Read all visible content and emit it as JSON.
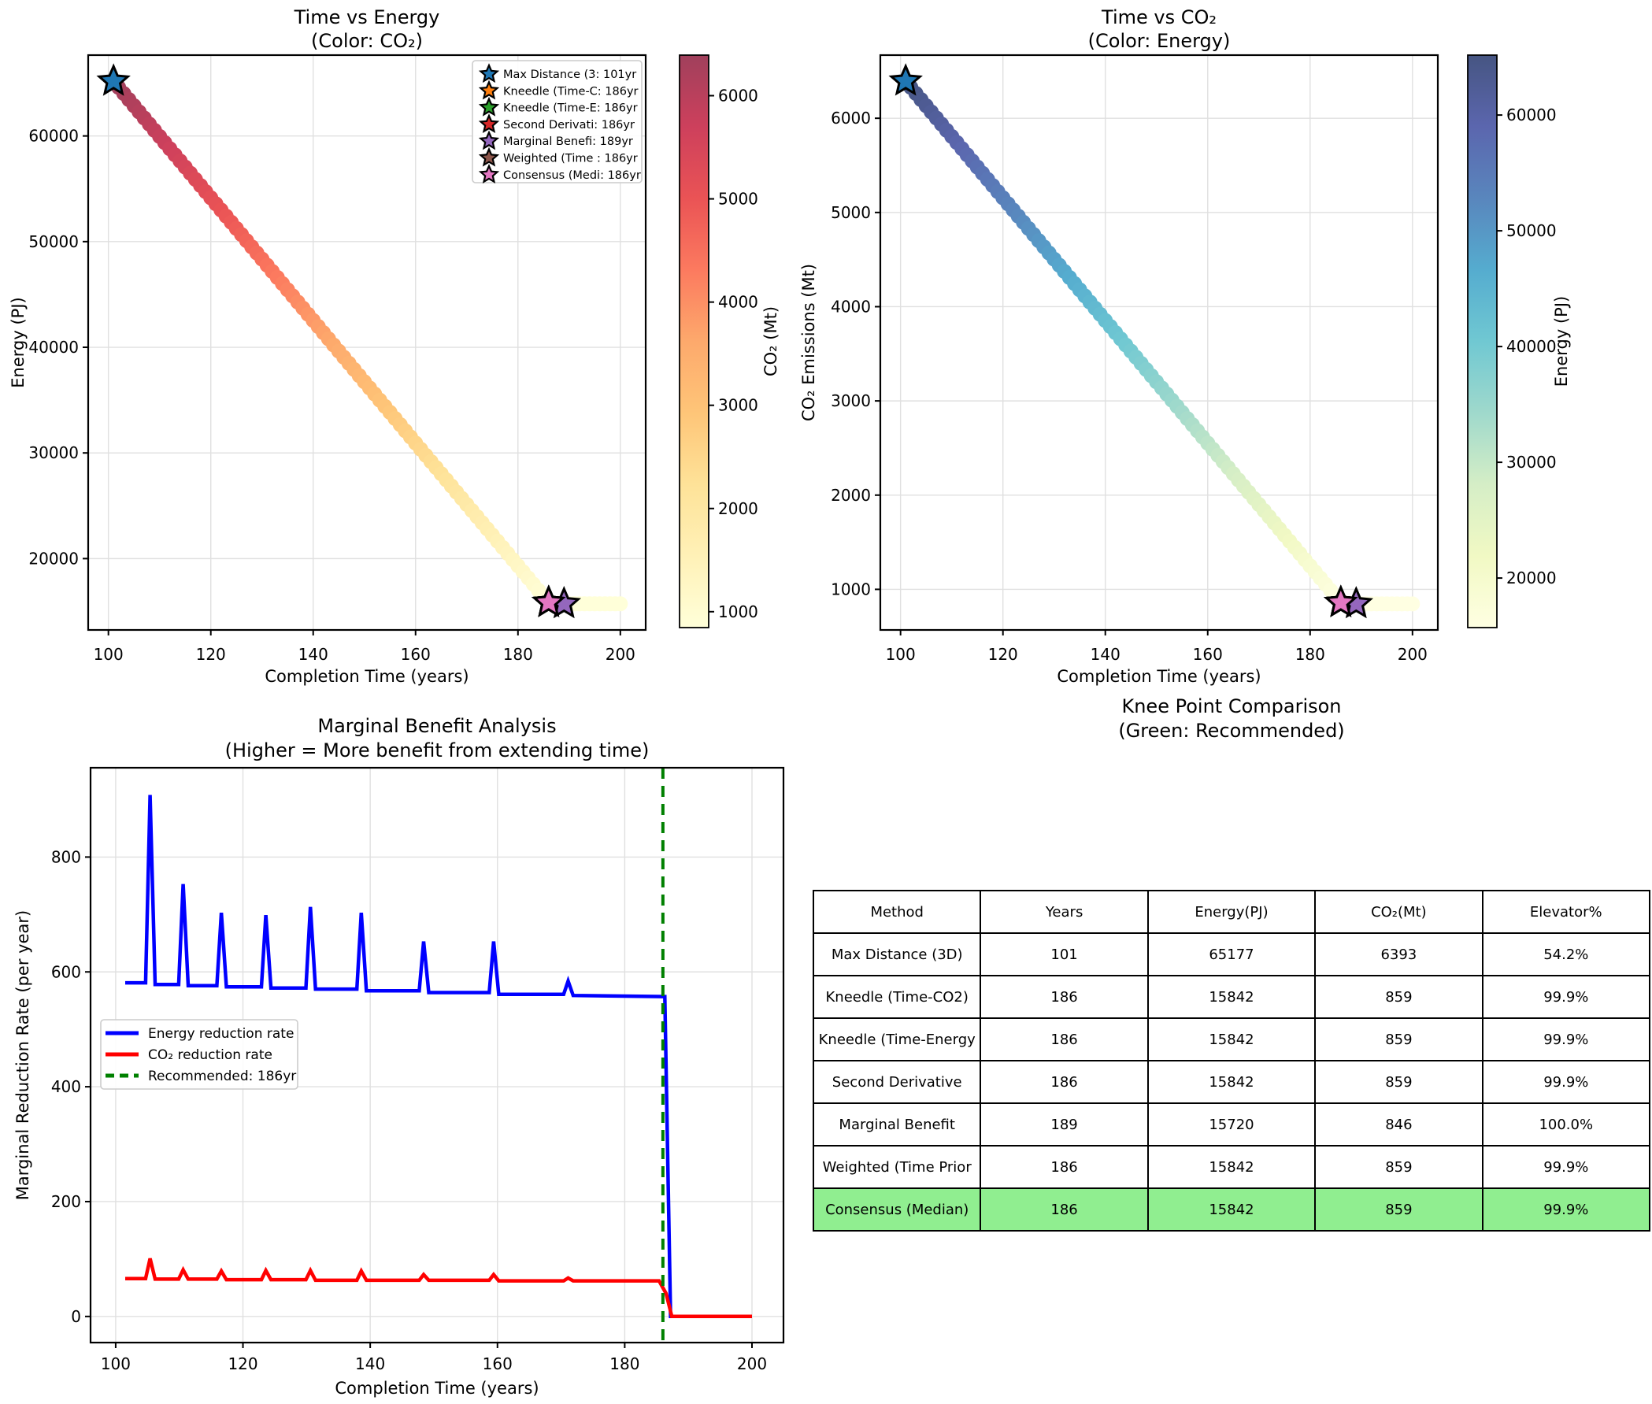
{
  "chart_data": [
    {
      "type": "scatter",
      "title_line1": "Time vs Energy",
      "title_line2": "(Color: CO₂)",
      "xlabel": "Completion Time (years)",
      "ylabel": "Energy (PJ)",
      "xlim": [
        96.05,
        204.95
      ],
      "ylim": [
        13247,
        67650
      ],
      "xticks": [
        100,
        120,
        140,
        160,
        180,
        200
      ],
      "yticks": [
        20000,
        30000,
        40000,
        50000,
        60000
      ],
      "points": {
        "x_start": 101,
        "x_end": 200,
        "x_step": 1,
        "y_keypoints": [
          [
            101,
            65177
          ],
          [
            186,
            15842
          ],
          [
            189,
            15720
          ],
          [
            200,
            15720
          ]
        ],
        "color_keypoints": [
          [
            101,
            6393
          ],
          [
            186,
            859
          ],
          [
            189,
            846
          ],
          [
            200,
            846
          ]
        ]
      },
      "colorbar": {
        "label": "CO₂ (Mt)",
        "vmin": 846,
        "vmax": 6393,
        "ticks": [
          1000,
          2000,
          3000,
          4000,
          5000,
          6000
        ],
        "gradient_stops": [
          "#ffffd9",
          "#fff1b7",
          "#fee298",
          "#fec578",
          "#fda96c",
          "#fc7a5f",
          "#ea5355",
          "#cd405c",
          "#a0405c"
        ]
      },
      "stars": [
        {
          "label": "Max Distance (3: 101yr",
          "x": 101,
          "y": 65177,
          "color": "#1f77b4"
        },
        {
          "label": "Kneedle (Time-C: 186yr",
          "x": 186,
          "y": 15842,
          "color": "#ff7f0e"
        },
        {
          "label": "Kneedle (Time-E: 186yr",
          "x": 186,
          "y": 15842,
          "color": "#2ca02c"
        },
        {
          "label": "Second Derivati: 186yr",
          "x": 186,
          "y": 15842,
          "color": "#d62728"
        },
        {
          "label": "Marginal Benefi: 189yr",
          "x": 189,
          "y": 15720,
          "color": "#9467bd"
        },
        {
          "label": "Weighted (Time : 186yr",
          "x": 186,
          "y": 15842,
          "color": "#8c564b"
        },
        {
          "label": "Consensus (Medi: 186yr",
          "x": 186,
          "y": 15842,
          "color": "#e377c2"
        }
      ],
      "show_legend": true
    },
    {
      "type": "scatter",
      "title_line1": "Time vs CO₂",
      "title_line2": "(Color: Energy)",
      "xlabel": "Completion Time (years)",
      "ylabel": "CO₂ Emissions (Mt)",
      "xlim": [
        96.05,
        204.95
      ],
      "ylim": [
        569,
        6670
      ],
      "xticks": [
        100,
        120,
        140,
        160,
        180,
        200
      ],
      "yticks": [
        1000,
        2000,
        3000,
        4000,
        5000,
        6000
      ],
      "points": {
        "x_start": 101,
        "x_end": 200,
        "x_step": 1,
        "y_keypoints": [
          [
            101,
            6393
          ],
          [
            186,
            859
          ],
          [
            189,
            846
          ],
          [
            200,
            846
          ]
        ],
        "color_keypoints": [
          [
            101,
            65177
          ],
          [
            186,
            15842
          ],
          [
            189,
            15720
          ],
          [
            200,
            15720
          ]
        ]
      },
      "colorbar": {
        "label": "Energy (PJ)",
        "vmin": 15720,
        "vmax": 65177,
        "ticks": [
          20000,
          30000,
          40000,
          50000,
          60000
        ],
        "gradient_stops": [
          "#ffffe2",
          "#f1f9c4",
          "#d5eec6",
          "#9fd9cc",
          "#70c8d2",
          "#55accf",
          "#5986bd",
          "#5b66ae",
          "#465582"
        ]
      },
      "stars": [
        {
          "label": "Max Distance (3: 101yr",
          "x": 101,
          "y": 6393,
          "color": "#1f77b4"
        },
        {
          "label": "Kneedle (Time-C: 186yr",
          "x": 186,
          "y": 859,
          "color": "#ff7f0e"
        },
        {
          "label": "Kneedle (Time-E: 186yr",
          "x": 186,
          "y": 859,
          "color": "#2ca02c"
        },
        {
          "label": "Second Derivati: 186yr",
          "x": 186,
          "y": 859,
          "color": "#d62728"
        },
        {
          "label": "Marginal Benefi: 189yr",
          "x": 189,
          "y": 846,
          "color": "#9467bd"
        },
        {
          "label": "Weighted (Time : 186yr",
          "x": 186,
          "y": 859,
          "color": "#8c564b"
        },
        {
          "label": "Consensus (Medi: 186yr",
          "x": 186,
          "y": 859,
          "color": "#e377c2"
        }
      ],
      "show_legend": false
    },
    {
      "type": "line",
      "title_line1": "Marginal Benefit Analysis",
      "title_line2": "(Higher = More benefit from extending time)",
      "xlabel": "Completion Time (years)",
      "ylabel": "Marginal Reduction Rate (per year)",
      "xlim": [
        96.05,
        204.95
      ],
      "ylim": [
        -45.5,
        955.5
      ],
      "xticks": [
        100,
        120,
        140,
        160,
        180,
        200
      ],
      "yticks": [
        0,
        200,
        400,
        600,
        800
      ],
      "series": [
        {
          "name": "Energy reduction rate",
          "color": "#0000ff",
          "points": [
            [
              101.5,
              581
            ],
            [
              104.7,
              581
            ],
            [
              105.4,
              908
            ],
            [
              106.2,
              578
            ],
            [
              109.9,
              578
            ],
            [
              110.6,
              753
            ],
            [
              111.4,
              576
            ],
            [
              115.9,
              576
            ],
            [
              116.6,
              703
            ],
            [
              117.4,
              574
            ],
            [
              122.9,
              574
            ],
            [
              123.6,
              699
            ],
            [
              124.4,
              572
            ],
            [
              129.9,
              572
            ],
            [
              130.6,
              713
            ],
            [
              131.4,
              570
            ],
            [
              137.9,
              570
            ],
            [
              138.6,
              703
            ],
            [
              139.4,
              567
            ],
            [
              147.7,
              567
            ],
            [
              148.4,
              653
            ],
            [
              149.2,
              564
            ],
            [
              158.7,
              564
            ],
            [
              159.4,
              653
            ],
            [
              160.2,
              561
            ],
            [
              170.4,
              561
            ],
            [
              171.1,
              584
            ],
            [
              171.9,
              559
            ],
            [
              186.3,
              557
            ],
            [
              187.2,
              0
            ],
            [
              200,
              0
            ]
          ]
        },
        {
          "name": "CO₂ reduction rate",
          "color": "#ff0000",
          "points": [
            [
              101.5,
              66
            ],
            [
              104.7,
              66
            ],
            [
              105.4,
              101
            ],
            [
              106.2,
              65
            ],
            [
              109.9,
              65
            ],
            [
              110.6,
              81
            ],
            [
              111.4,
              65
            ],
            [
              115.9,
              65
            ],
            [
              116.6,
              79
            ],
            [
              117.4,
              64
            ],
            [
              122.9,
              64
            ],
            [
              123.6,
              80
            ],
            [
              124.4,
              64
            ],
            [
              129.9,
              64
            ],
            [
              130.6,
              80
            ],
            [
              131.4,
              63
            ],
            [
              137.9,
              63
            ],
            [
              138.6,
              79
            ],
            [
              139.4,
              63
            ],
            [
              147.7,
              63
            ],
            [
              148.4,
              73
            ],
            [
              149.2,
              63
            ],
            [
              158.7,
              63
            ],
            [
              159.4,
              73
            ],
            [
              160.2,
              62
            ],
            [
              170.4,
              62
            ],
            [
              171.1,
              67
            ],
            [
              171.9,
              62
            ],
            [
              185.4,
              62
            ],
            [
              186.5,
              40
            ],
            [
              187.4,
              0
            ],
            [
              200,
              0
            ]
          ]
        }
      ],
      "vline": {
        "x": 186,
        "color": "#008000",
        "label": "Recommended: 186yr"
      }
    },
    {
      "type": "table",
      "title_line1": "Knee Point Comparison",
      "title_line2": "(Green: Recommended)",
      "headers": [
        "Method",
        "Years",
        "Energy(PJ)",
        "CO₂(Mt)",
        "Elevator%"
      ],
      "rows": [
        [
          "Max Distance (3D)",
          "101",
          "65177",
          "6393",
          "54.2%"
        ],
        [
          "Kneedle (Time-CO2)",
          "186",
          "15842",
          "859",
          "99.9%"
        ],
        [
          "Kneedle (Time-Energy",
          "186",
          "15842",
          "859",
          "99.9%"
        ],
        [
          "Second Derivative",
          "186",
          "15842",
          "859",
          "99.9%"
        ],
        [
          "Marginal Benefit",
          "189",
          "15720",
          "846",
          "100.0%"
        ],
        [
          "Weighted (Time Prior",
          "186",
          "15842",
          "859",
          "99.9%"
        ],
        [
          "Consensus (Median)",
          "186",
          "15842",
          "859",
          "99.9%"
        ]
      ],
      "highlight_row_index": 6,
      "highlight_color": "#90ee90"
    }
  ]
}
